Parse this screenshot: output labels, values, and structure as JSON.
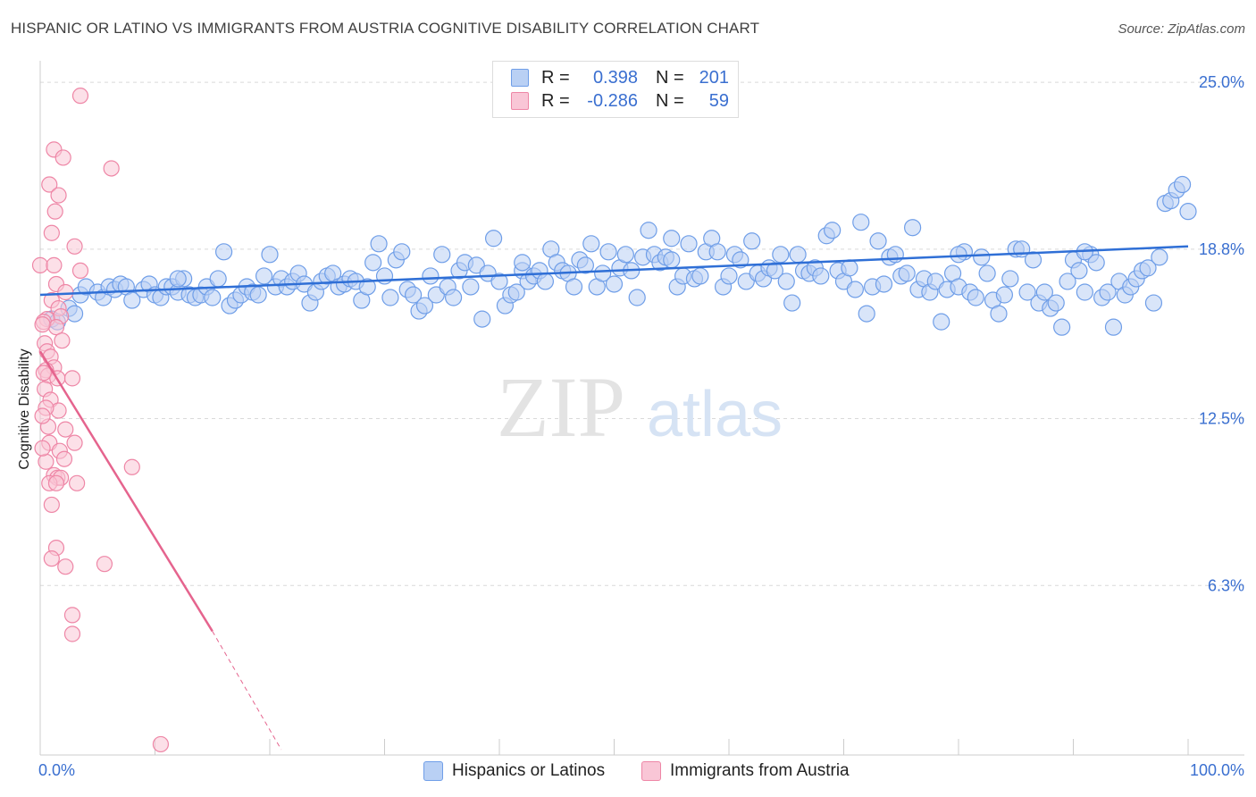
{
  "title": "HISPANIC OR LATINO VS IMMIGRANTS FROM AUSTRIA COGNITIVE DISABILITY CORRELATION CHART",
  "source": "Source: ZipAtlas.com",
  "watermark": {
    "zip": "ZIP",
    "atlas": "atlas"
  },
  "legend": {
    "rows": [
      {
        "r_label": "R =",
        "r_value": "0.398",
        "n_label": "N =",
        "n_value": "201",
        "color": "#6f9ee8",
        "fill": "#b9d0f4"
      },
      {
        "r_label": "R =",
        "r_value": "-0.286",
        "n_label": "N =",
        "n_value": "59",
        "color": "#ee86a6",
        "fill": "#f9c6d6"
      }
    ]
  },
  "bottom_legend": [
    {
      "label": "Hispanics or Latinos",
      "color": "#6f9ee8",
      "fill": "#b9d0f4"
    },
    {
      "label": "Immigrants from Austria",
      "color": "#ee86a6",
      "fill": "#f9c6d6"
    }
  ],
  "chart_data": {
    "type": "scatter",
    "title": "HISPANIC OR LATINO VS IMMIGRANTS FROM AUSTRIA COGNITIVE DISABILITY CORRELATION CHART",
    "xlabel": "",
    "ylabel": "Cognitive Disability",
    "xlim": [
      0,
      100
    ],
    "ylim": [
      0,
      25.8
    ],
    "x_tick_labels": [
      "0.0%",
      "100.0%"
    ],
    "y_ticks": [
      6.3,
      12.5,
      18.8,
      25.0
    ],
    "y_tick_labels": [
      "6.3%",
      "12.5%",
      "18.8%",
      "25.0%"
    ],
    "grid": true,
    "legend_position": "top-center",
    "series": [
      {
        "name": "Hispanics or Latinos",
        "color": "#3a72d6",
        "fill": "#b9d0f4",
        "trend": {
          "x": [
            0,
            100
          ],
          "y": [
            17.1,
            18.9
          ]
        },
        "points": [
          [
            1,
            16.2
          ],
          [
            1.5,
            16.1
          ],
          [
            2.5,
            16.6
          ],
          [
            3,
            16.4
          ],
          [
            3.5,
            17.1
          ],
          [
            4,
            17.4
          ],
          [
            5,
            17.2
          ],
          [
            5.5,
            17.0
          ],
          [
            6,
            17.4
          ],
          [
            6.5,
            17.3
          ],
          [
            7,
            17.5
          ],
          [
            7.5,
            17.4
          ],
          [
            8,
            16.9
          ],
          [
            9,
            17.3
          ],
          [
            9.5,
            17.5
          ],
          [
            10,
            17.1
          ],
          [
            10.5,
            17.0
          ],
          [
            11,
            17.4
          ],
          [
            11.5,
            17.4
          ],
          [
            12,
            17.2
          ],
          [
            12.5,
            17.7
          ],
          [
            13,
            17.1
          ],
          [
            13.5,
            17.0
          ],
          [
            14,
            17.1
          ],
          [
            14.5,
            17.4
          ],
          [
            15,
            17.0
          ],
          [
            15.5,
            17.7
          ],
          [
            16,
            18.7
          ],
          [
            16.5,
            16.7
          ],
          [
            17,
            16.9
          ],
          [
            17.5,
            17.1
          ],
          [
            18,
            17.4
          ],
          [
            18.5,
            17.2
          ],
          [
            19,
            17.1
          ],
          [
            19.5,
            17.8
          ],
          [
            20,
            18.6
          ],
          [
            20.5,
            17.4
          ],
          [
            21,
            17.7
          ],
          [
            21.5,
            17.4
          ],
          [
            22,
            17.6
          ],
          [
            22.5,
            17.9
          ],
          [
            23,
            17.5
          ],
          [
            23.5,
            16.8
          ],
          [
            24,
            17.2
          ],
          [
            24.5,
            17.6
          ],
          [
            25,
            17.8
          ],
          [
            25.5,
            17.9
          ],
          [
            26,
            17.4
          ],
          [
            26.5,
            17.5
          ],
          [
            27,
            17.7
          ],
          [
            27.5,
            17.6
          ],
          [
            28,
            16.9
          ],
          [
            28.5,
            17.4
          ],
          [
            29,
            18.3
          ],
          [
            29.5,
            19.0
          ],
          [
            30,
            17.8
          ],
          [
            30.5,
            17.0
          ],
          [
            31,
            18.4
          ],
          [
            31.5,
            18.7
          ],
          [
            32,
            17.3
          ],
          [
            32.5,
            17.1
          ],
          [
            33,
            16.5
          ],
          [
            33.5,
            16.7
          ],
          [
            34,
            17.8
          ],
          [
            34.5,
            17.1
          ],
          [
            35,
            18.6
          ],
          [
            35.5,
            17.4
          ],
          [
            36,
            17.0
          ],
          [
            36.5,
            18.0
          ],
          [
            37,
            18.3
          ],
          [
            37.5,
            17.4
          ],
          [
            38,
            18.2
          ],
          [
            38.5,
            16.2
          ],
          [
            39,
            17.9
          ],
          [
            39.5,
            19.2
          ],
          [
            40,
            17.6
          ],
          [
            40.5,
            16.7
          ],
          [
            41,
            17.1
          ],
          [
            41.5,
            17.2
          ],
          [
            42,
            18.0
          ],
          [
            42.5,
            17.6
          ],
          [
            43,
            17.8
          ],
          [
            43.5,
            18.0
          ],
          [
            44,
            17.6
          ],
          [
            44.5,
            18.8
          ],
          [
            45,
            18.3
          ],
          [
            45.5,
            18.0
          ],
          [
            46,
            17.9
          ],
          [
            46.5,
            17.4
          ],
          [
            47,
            18.4
          ],
          [
            47.5,
            18.2
          ],
          [
            48,
            19.0
          ],
          [
            48.5,
            17.4
          ],
          [
            49,
            17.9
          ],
          [
            49.5,
            18.7
          ],
          [
            50,
            17.5
          ],
          [
            50.5,
            18.1
          ],
          [
            51,
            18.6
          ],
          [
            51.5,
            18.0
          ],
          [
            52,
            17.0
          ],
          [
            52.5,
            18.5
          ],
          [
            53,
            19.5
          ],
          [
            53.5,
            18.6
          ],
          [
            54,
            18.3
          ],
          [
            54.5,
            18.5
          ],
          [
            55,
            18.4
          ],
          [
            55.5,
            17.4
          ],
          [
            56,
            17.8
          ],
          [
            56.5,
            19.0
          ],
          [
            57,
            17.7
          ],
          [
            57.5,
            17.8
          ],
          [
            58,
            18.7
          ],
          [
            58.5,
            19.2
          ],
          [
            59,
            18.7
          ],
          [
            59.5,
            17.4
          ],
          [
            60,
            17.8
          ],
          [
            60.5,
            18.6
          ],
          [
            61,
            18.4
          ],
          [
            61.5,
            17.6
          ],
          [
            62,
            19.1
          ],
          [
            62.5,
            17.9
          ],
          [
            63,
            17.7
          ],
          [
            63.5,
            18.1
          ],
          [
            64,
            18.0
          ],
          [
            64.5,
            18.6
          ],
          [
            65,
            17.6
          ],
          [
            65.5,
            16.8
          ],
          [
            66,
            18.6
          ],
          [
            66.5,
            18.0
          ],
          [
            67,
            17.9
          ],
          [
            67.5,
            18.1
          ],
          [
            68,
            17.8
          ],
          [
            68.5,
            19.3
          ],
          [
            69,
            19.5
          ],
          [
            69.5,
            18.0
          ],
          [
            70,
            17.6
          ],
          [
            70.5,
            18.1
          ],
          [
            71,
            17.3
          ],
          [
            71.5,
            19.8
          ],
          [
            72,
            16.4
          ],
          [
            72.5,
            17.4
          ],
          [
            73,
            19.1
          ],
          [
            73.5,
            17.5
          ],
          [
            74,
            18.5
          ],
          [
            74.5,
            18.6
          ],
          [
            75,
            17.8
          ],
          [
            75.5,
            17.9
          ],
          [
            76,
            19.6
          ],
          [
            76.5,
            17.3
          ],
          [
            77,
            17.7
          ],
          [
            77.5,
            17.2
          ],
          [
            78,
            17.6
          ],
          [
            78.5,
            16.1
          ],
          [
            79,
            17.3
          ],
          [
            79.5,
            17.9
          ],
          [
            80,
            17.4
          ],
          [
            80.5,
            18.7
          ],
          [
            81,
            17.2
          ],
          [
            81.5,
            17.0
          ],
          [
            82,
            18.5
          ],
          [
            82.5,
            17.9
          ],
          [
            83,
            16.9
          ],
          [
            83.5,
            16.4
          ],
          [
            84,
            17.1
          ],
          [
            84.5,
            17.7
          ],
          [
            85,
            18.8
          ],
          [
            85.5,
            18.8
          ],
          [
            86,
            17.2
          ],
          [
            86.5,
            18.4
          ],
          [
            87,
            16.8
          ],
          [
            87.5,
            17.2
          ],
          [
            88,
            16.6
          ],
          [
            88.5,
            16.8
          ],
          [
            89,
            15.9
          ],
          [
            89.5,
            17.6
          ],
          [
            90,
            18.4
          ],
          [
            90.5,
            18.0
          ],
          [
            91,
            17.2
          ],
          [
            91.5,
            18.6
          ],
          [
            92,
            18.3
          ],
          [
            92.5,
            17.0
          ],
          [
            93,
            17.2
          ],
          [
            93.5,
            15.9
          ],
          [
            94,
            17.6
          ],
          [
            94.5,
            17.1
          ],
          [
            95,
            17.4
          ],
          [
            95.5,
            17.7
          ],
          [
            96,
            18.0
          ],
          [
            96.5,
            18.1
          ],
          [
            97,
            16.8
          ],
          [
            97.5,
            18.5
          ],
          [
            98,
            20.5
          ],
          [
            98.5,
            20.6
          ],
          [
            99,
            21.0
          ],
          [
            99.5,
            21.2
          ],
          [
            100,
            20.2
          ],
          [
            91,
            18.7
          ],
          [
            55,
            19.2
          ],
          [
            42,
            18.3
          ],
          [
            12,
            17.7
          ],
          [
            80,
            18.6
          ]
        ]
      },
      {
        "name": "Immigrants from Austria",
        "color": "#e5648e",
        "fill": "#f9c6d6",
        "trend": {
          "x": [
            0,
            15
          ],
          "y": [
            15.0,
            4.6
          ]
        },
        "trend_dashed": {
          "x": [
            15,
            21
          ],
          "y": [
            4.6,
            0.2
          ]
        },
        "points": [
          [
            3.5,
            24.5
          ],
          [
            1.2,
            22.5
          ],
          [
            2.0,
            22.2
          ],
          [
            6.2,
            21.8
          ],
          [
            0.8,
            21.2
          ],
          [
            1.6,
            20.8
          ],
          [
            1.3,
            20.2
          ],
          [
            1.0,
            19.4
          ],
          [
            3.0,
            18.9
          ],
          [
            0,
            18.2
          ],
          [
            1.2,
            18.2
          ],
          [
            3.5,
            18.0
          ],
          [
            1.4,
            17.5
          ],
          [
            2.2,
            17.2
          ],
          [
            1.0,
            16.9
          ],
          [
            1.6,
            16.6
          ],
          [
            1.8,
            16.3
          ],
          [
            0.6,
            16.2
          ],
          [
            0.3,
            16.1
          ],
          [
            1.4,
            15.9
          ],
          [
            1.9,
            15.4
          ],
          [
            0.4,
            15.3
          ],
          [
            0.6,
            15.0
          ],
          [
            0.9,
            14.8
          ],
          [
            1.2,
            14.4
          ],
          [
            0.5,
            14.3
          ],
          [
            0.7,
            14.1
          ],
          [
            1.5,
            14.0
          ],
          [
            2.8,
            14.0
          ],
          [
            0.4,
            13.6
          ],
          [
            0.9,
            13.2
          ],
          [
            1.6,
            12.8
          ],
          [
            0.5,
            12.9
          ],
          [
            0.7,
            12.2
          ],
          [
            2.2,
            12.1
          ],
          [
            0.8,
            11.6
          ],
          [
            3.0,
            11.6
          ],
          [
            1.7,
            11.3
          ],
          [
            2.1,
            11.0
          ],
          [
            0.5,
            10.9
          ],
          [
            8.0,
            10.7
          ],
          [
            1.2,
            10.4
          ],
          [
            1.5,
            10.3
          ],
          [
            1.8,
            10.3
          ],
          [
            0.8,
            10.1
          ],
          [
            1.4,
            10.1
          ],
          [
            3.2,
            10.1
          ],
          [
            1.0,
            9.3
          ],
          [
            1.4,
            7.7
          ],
          [
            1.0,
            7.3
          ],
          [
            2.2,
            7.0
          ],
          [
            5.6,
            7.1
          ],
          [
            2.8,
            5.2
          ],
          [
            2.8,
            4.5
          ],
          [
            10.5,
            0.4
          ],
          [
            0.2,
            16.0
          ],
          [
            0.3,
            14.2
          ],
          [
            0.2,
            12.6
          ],
          [
            0.2,
            11.4
          ]
        ]
      }
    ]
  }
}
